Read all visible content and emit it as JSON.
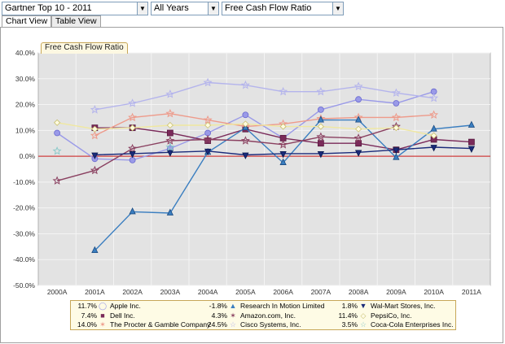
{
  "toolbar": {
    "list_select": "Gartner Top 10 - 2011",
    "years_select": "All Years",
    "metric_select": "Free Cash Flow Ratio"
  },
  "tabs": [
    {
      "label": "Chart View",
      "active": true
    },
    {
      "label": "Table View",
      "active": false
    }
  ],
  "chart_title_tab": "Free Cash Flow Ratio",
  "colors": {
    "plot_bg": "#e3e3e3",
    "zero_line": "#d04040",
    "legend_bg": "#fefbe5",
    "legend_border": "#c7a758"
  },
  "chart_data": {
    "type": "line",
    "categories": [
      "2000A",
      "2001A",
      "2002A",
      "2003A",
      "2004A",
      "2005A",
      "2006A",
      "2007A",
      "2008A",
      "2009A",
      "2010A",
      "2011A"
    ],
    "ylim": [
      -50,
      40
    ],
    "yticks": [
      "40.0%",
      "30.0%",
      "20.0%",
      "10.0%",
      "0.0%",
      "-10.0%",
      "-20.0%",
      "-30.0%",
      "-40.0%",
      "-50.0%"
    ],
    "ytick_values": [
      40,
      30,
      20,
      10,
      0,
      -10,
      -20,
      -30,
      -40,
      -50
    ],
    "grid": true,
    "legend_position": "bottom",
    "series": [
      {
        "name": "Apple Inc.",
        "legend_value": "11.7%",
        "color": "#9a9ae8",
        "marker": "circle",
        "values": [
          9,
          -1,
          -1.5,
          3,
          9,
          16,
          7,
          18,
          22,
          20.5,
          25,
          null
        ]
      },
      {
        "name": "Dell Inc.",
        "legend_value": "7.4%",
        "color": "#7a2a5a",
        "marker": "square",
        "values": [
          null,
          11,
          11,
          9,
          6,
          10.5,
          7,
          5,
          5,
          2.5,
          6.5,
          5.5
        ]
      },
      {
        "name": "The Procter & Gamble Company",
        "legend_value": "14.0%",
        "color": "#ee9a8a",
        "marker": "star",
        "values": [
          null,
          8,
          15,
          16.5,
          14,
          11.5,
          12.5,
          14.5,
          15,
          15,
          16,
          null
        ]
      },
      {
        "name": "Research In Motion Limited",
        "legend_value": "-1.8%",
        "color": "#3a7ec0",
        "marker": "triangle",
        "values": [
          null,
          -36.5,
          -21.5,
          -22,
          1.5,
          11,
          -2.5,
          14,
          14,
          -0.5,
          10.5,
          12
        ]
      },
      {
        "name": "Amazon.com, Inc.",
        "legend_value": "4.3%",
        "color": "#8a4060",
        "marker": "star",
        "values": [
          -9.5,
          -5.5,
          3,
          6,
          6.5,
          6,
          4.5,
          7.5,
          7,
          11.5,
          null,
          null
        ]
      },
      {
        "name": "Cisco Systems, Inc.",
        "legend_value": "24.5%",
        "color": "#b4b4ec",
        "marker": "star",
        "values": [
          null,
          18,
          20.5,
          24,
          28.5,
          27.5,
          25,
          25,
          27,
          24.5,
          22.5,
          null
        ]
      },
      {
        "name": "Wal-Mart Stores, Inc.",
        "legend_value": "1.8%",
        "color": "#1a2a7a",
        "marker": "tri-down",
        "values": [
          null,
          0.5,
          1,
          1.5,
          2,
          0.5,
          1,
          1,
          1.5,
          2.5,
          3.5,
          3
        ]
      },
      {
        "name": "PepsiCo, Inc.",
        "legend_value": "11.4%",
        "color": "#f0e8a0",
        "marker": "diamond",
        "values": [
          13,
          10.5,
          11,
          12,
          12,
          12.5,
          11.5,
          11.5,
          10.5,
          11,
          8,
          null
        ]
      },
      {
        "name": "Coca-Cola Enterprises Inc.",
        "legend_value": "3.5%",
        "color": "#8ccaca",
        "marker": "star",
        "values": [
          2,
          null,
          null,
          3.5,
          null,
          null,
          null,
          null,
          null,
          null,
          null,
          null
        ]
      }
    ]
  },
  "legend": {
    "items": [
      {
        "pct": "11.7%",
        "name": "Apple Inc.",
        "glyph": "◯"
      },
      {
        "pct": "7.4%",
        "name": "Dell Inc.",
        "glyph": "■"
      },
      {
        "pct": "14.0%",
        "name": "The Procter & Gamble Company",
        "glyph": "✶"
      },
      {
        "pct": "-1.8%",
        "name": "Research In Motion Limited",
        "glyph": "▲"
      },
      {
        "pct": "4.3%",
        "name": "Amazon.com, Inc.",
        "glyph": "✶"
      },
      {
        "pct": "24.5%",
        "name": "Cisco Systems, Inc.",
        "glyph": "☆"
      },
      {
        "pct": "1.8%",
        "name": "Wal-Mart Stores, Inc.",
        "glyph": "▼"
      },
      {
        "pct": "11.4%",
        "name": "PepsiCo, Inc.",
        "glyph": "◇"
      },
      {
        "pct": "3.5%",
        "name": "Coca-Cola Enterprises Inc.",
        "glyph": "☆"
      }
    ]
  }
}
